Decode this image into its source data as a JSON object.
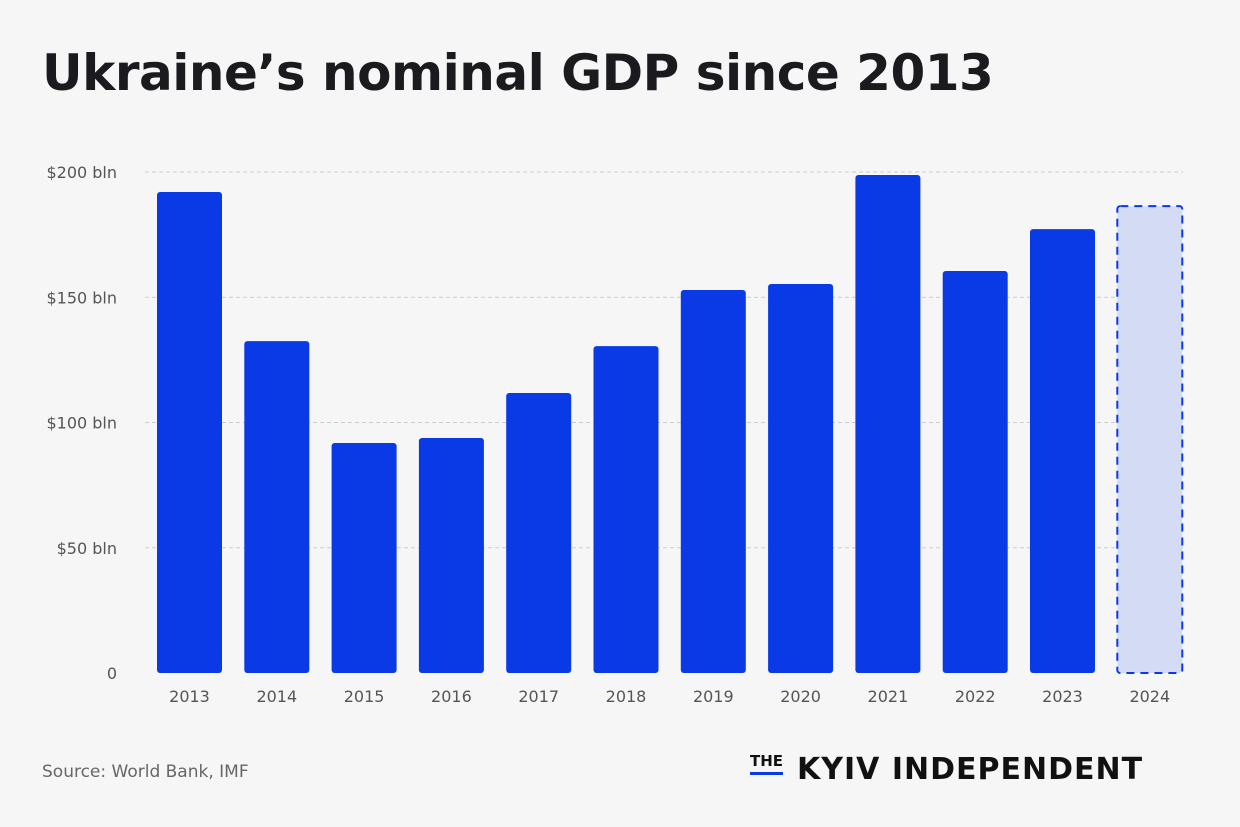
{
  "title": "Ukraine’s nominal GDP since 2013",
  "source": "Source: World Bank, IMF",
  "logo": {
    "the": "THE",
    "name": "KYIV INDEPENDENT"
  },
  "colors": {
    "bar": "#0a3ae6",
    "projected_fill": "#d4dbf5",
    "projected_stroke": "#0a3ae6"
  },
  "chart_data": {
    "type": "bar",
    "title": "Ukraine’s nominal GDP since 2013",
    "xlabel": "",
    "ylabel": "",
    "ylim": [
      0,
      200
    ],
    "yticks": [
      0,
      50,
      100,
      150,
      200
    ],
    "ytick_labels": [
      "0",
      "$50 bln",
      "$100 bln",
      "$150 bln",
      "$200 bln"
    ],
    "categories": [
      "2013",
      "2014",
      "2015",
      "2016",
      "2017",
      "2018",
      "2019",
      "2020",
      "2021",
      "2022",
      "2023",
      "2024"
    ],
    "values": [
      192.0,
      132.5,
      91.8,
      93.8,
      111.8,
      130.5,
      152.9,
      155.3,
      198.8,
      160.5,
      177.2,
      186.4
    ],
    "projected": [
      false,
      false,
      false,
      false,
      false,
      false,
      false,
      false,
      false,
      false,
      false,
      true
    ],
    "grid": true
  }
}
